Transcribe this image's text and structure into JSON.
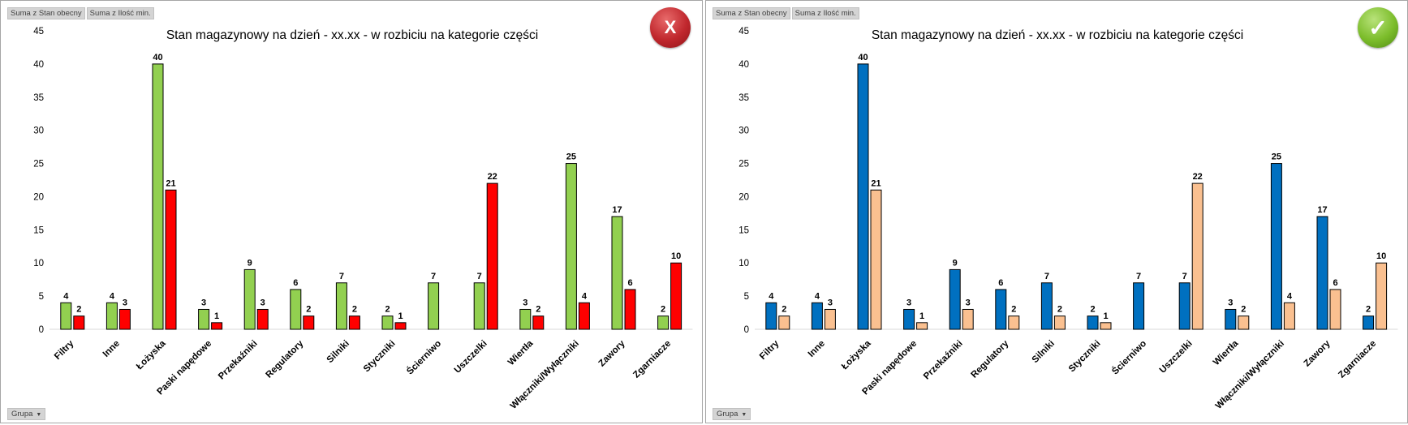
{
  "field_buttons": {
    "sum_current": "Suma z Stan obecny",
    "sum_min": "Suma z Ilość min."
  },
  "grupa_button": "Grupa",
  "badges": {
    "wrong": "X",
    "correct": "✓"
  },
  "chart_data": [
    {
      "type": "bar",
      "title": "Stan magazynowy na dzień - xx.xx - w rozbiciu na kategorie części",
      "categories": [
        "Filtry",
        "Inne",
        "Łożyska",
        "Paski napędowe",
        "Przekaźniki",
        "Regulatory",
        "Silniki",
        "Styczniki",
        "Ścierniwo",
        "Uszczelki",
        "Wiertła",
        "Włączniki/Wyłączniki",
        "Zawory",
        "Zgarniacze"
      ],
      "series": [
        {
          "values": [
            4,
            4,
            40,
            3,
            9,
            6,
            7,
            2,
            7,
            7,
            3,
            25,
            17,
            2
          ],
          "color": "#92d050"
        },
        {
          "values": [
            2,
            3,
            21,
            1,
            3,
            2,
            2,
            1,
            null,
            22,
            2,
            4,
            6,
            10
          ],
          "color": "#ff0000"
        }
      ],
      "ylim": [
        0,
        45
      ],
      "yticks": [
        0,
        5,
        10,
        15,
        20,
        25,
        30,
        35,
        40,
        45
      ],
      "grid": false
    },
    {
      "type": "bar",
      "title": "Stan magazynowy na dzień - xx.xx - w rozbiciu na kategorie części",
      "categories": [
        "Filtry",
        "Inne",
        "Łożyska",
        "Paski napędowe",
        "Przekaźniki",
        "Regulatory",
        "Silniki",
        "Styczniki",
        "Ścierniwo",
        "Uszczelki",
        "Wiertła",
        "Włączniki/Wyłączniki",
        "Zawory",
        "Zgarniacze"
      ],
      "series": [
        {
          "values": [
            4,
            4,
            40,
            3,
            9,
            6,
            7,
            2,
            7,
            7,
            3,
            25,
            17,
            2
          ],
          "color": "#0070c0"
        },
        {
          "values": [
            2,
            3,
            21,
            1,
            3,
            2,
            2,
            1,
            null,
            22,
            2,
            4,
            6,
            10
          ],
          "color": "#fac090"
        }
      ],
      "ylim": [
        0,
        45
      ],
      "yticks": [
        0,
        5,
        10,
        15,
        20,
        25,
        30,
        35,
        40,
        45
      ],
      "grid": false
    }
  ]
}
